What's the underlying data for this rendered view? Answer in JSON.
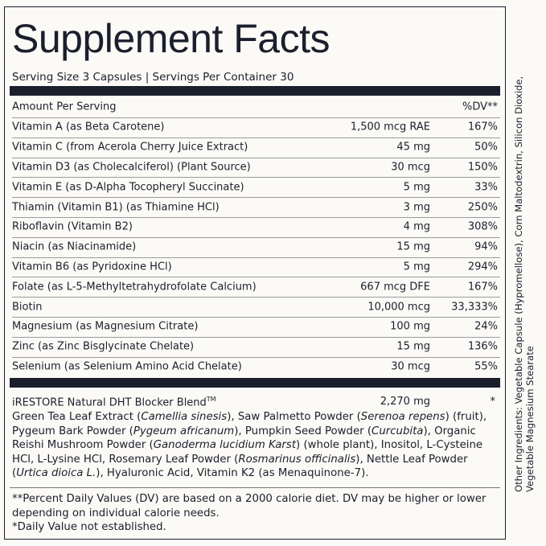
{
  "header": {
    "title": "Supplement Facts",
    "serving": "Serving Size 3 Capsules | Servings Per Container 30"
  },
  "table": {
    "header": [
      "Amount Per Serving",
      "%DV**"
    ],
    "rows": [
      [
        "Vitamin A (as Beta Carotene)",
        "1,500 mcg RAE",
        "167%"
      ],
      [
        "Vitamin C (from Acerola Cherry Juice Extract)",
        "45 mg",
        "50%"
      ],
      [
        "Vitamin D3 (as Cholecalciferol) (Plant Source)",
        "30 mcg",
        "150%"
      ],
      [
        "Vitamin E (as D-Alpha Tocopheryl Succinate)",
        "5 mg",
        "33%"
      ],
      [
        "Thiamin (Vitamin B1) (as Thiamine HCl)",
        "3 mg",
        "250%"
      ],
      [
        "Riboflavin (Vitamin B2)",
        "4 mg",
        "308%"
      ],
      [
        "Niacin (as Niacinamide)",
        "15 mg",
        "94%"
      ],
      [
        "Vitamin B6 (as Pyridoxine HCl)",
        "5 mg",
        "294%"
      ],
      [
        "Folate (as L-5-Methyltetrahydrofolate Calcium)",
        "667 mcg DFE",
        "167%"
      ],
      [
        "Biotin",
        "10,000 mcg",
        "33,333%"
      ],
      [
        "Magnesium (as Magnesium Citrate)",
        "100 mg",
        "24%"
      ],
      [
        "Zinc (as Zinc Bisglycinate Chelate)",
        "15 mg",
        "136%"
      ],
      [
        "Selenium (as Selenium Amino Acid Chelate)",
        "30 mcg",
        "55%"
      ]
    ]
  },
  "blend": {
    "name": "iRESTORE Natural DHT Blocker Blend",
    "mark": "TM",
    "amount": "2,270 mg",
    "dv": "*",
    "parts": [
      {
        "text": "Green Tea Leaf Extract (",
        "italic": false
      },
      {
        "text": "Camellia sinesis",
        "italic": true
      },
      {
        "text": "), Saw Palmetto Powder (",
        "italic": false
      },
      {
        "text": "Serenoa repens",
        "italic": true
      },
      {
        "text": ") (fruit), Pygeum Bark Powder (",
        "italic": false
      },
      {
        "text": "Pygeum africanum",
        "italic": true
      },
      {
        "text": "), Pumpkin Seed Powder (",
        "italic": false
      },
      {
        "text": "Curcubita",
        "italic": true
      },
      {
        "text": "), Organic Reishi Mushroom Powder (",
        "italic": false
      },
      {
        "text": "Ganoderma lucidium Karst",
        "italic": true
      },
      {
        "text": ") (whole plant), Inositol, L-Cysteine HCl, L-Lysine HCl, Rosemary Leaf Powder (",
        "italic": false
      },
      {
        "text": "Rosmarinus officinalis",
        "italic": true
      },
      {
        "text": "), Nettle Leaf Powder (",
        "italic": false
      },
      {
        "text": "Urtica dioica L.",
        "italic": true
      },
      {
        "text": "), Hyaluronic Acid, Vitamin K2 (as Menaquinone-7).",
        "italic": false
      }
    ]
  },
  "footnotes": [
    "**Percent Daily Values (DV) are based on a 2000 calorie diet. DV may be higher or lower depending on individual calorie needs.",
    "*Daily Value not established."
  ],
  "other_ingredients": [
    "Other Ingredients: Vegetable Capsule (Hypromellose), Corn Maltodextrin, Silicon Dioxide,",
    "Vegetable Magnesium Stearate"
  ]
}
